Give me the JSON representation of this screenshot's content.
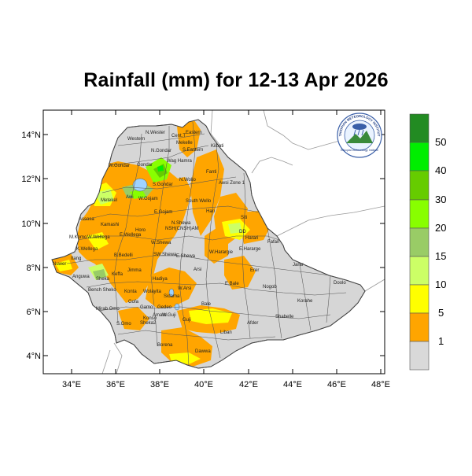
{
  "title": "Rainfall (mm) for 12-13 Apr 2026",
  "colors": {
    "bg_land": "#d6d6d6",
    "c_lt1": "#d9d9d9",
    "c_1_5": "#ffa500",
    "c_5_10": "#ffff00",
    "c_10_15": "#ccff66",
    "c_15_20": "#99cc66",
    "c_20_30": "#88ff00",
    "c_30_40": "#66cc00",
    "c_40_50": "#00ee00",
    "c_gt50": "#228b22"
  },
  "axes": {
    "lat_ticks": [
      "4°N",
      "6°N",
      "8°N",
      "10°N",
      "12°N",
      "14°N"
    ],
    "lon_ticks": [
      "34°E",
      "36°E",
      "38°E",
      "40°E",
      "42°E",
      "44°E",
      "46°E",
      "48°E"
    ]
  },
  "colorbar": {
    "labels": [
      "1",
      "5",
      "10",
      "15",
      "20",
      "30",
      "40",
      "50"
    ]
  },
  "regions": [
    {
      "name": "Western"
    },
    {
      "name": "N.Wester"
    },
    {
      "name": "Cent.T"
    },
    {
      "name": "Eastern"
    },
    {
      "name": "N.Gondar"
    },
    {
      "name": "Mekelle"
    },
    {
      "name": "S.Eastern"
    },
    {
      "name": "Kilbati"
    },
    {
      "name": "W.Gondar"
    },
    {
      "name": "Gondar"
    },
    {
      "name": "Wag Hamra"
    },
    {
      "name": "Fanti"
    },
    {
      "name": "Awsi Zone 1"
    },
    {
      "name": "Metekel"
    },
    {
      "name": "Awi"
    },
    {
      "name": "W.Gojam"
    },
    {
      "name": "S.Gondar"
    },
    {
      "name": "N.Wollo"
    },
    {
      "name": "E.Gojam"
    },
    {
      "name": "South Wello"
    },
    {
      "name": "Hari"
    },
    {
      "name": "Assosa"
    },
    {
      "name": "Kamashi"
    },
    {
      "name": "Horo"
    },
    {
      "name": "N.Shewa"
    },
    {
      "name": "NSH(CNSH)AM"
    },
    {
      "name": "Siti"
    },
    {
      "name": "M.Komo"
    },
    {
      "name": "W.Wellega"
    },
    {
      "name": "E.Wellega"
    },
    {
      "name": "W.Shewa"
    },
    {
      "name": "Harari"
    },
    {
      "name": "Fafan"
    },
    {
      "name": "K.Wellega"
    },
    {
      "name": "DD"
    },
    {
      "name": "W.Harargie"
    },
    {
      "name": "E.Hararge"
    },
    {
      "name": "Nuwer"
    },
    {
      "name": "Itang"
    },
    {
      "name": "B.Bedelli"
    },
    {
      "name": "SW.Shewa"
    },
    {
      "name": "E.Shewa"
    },
    {
      "name": "Jimma"
    },
    {
      "name": "Jarar"
    },
    {
      "name": "Anguwa"
    },
    {
      "name": "Sheka"
    },
    {
      "name": "Arsi"
    },
    {
      "name": "Erer"
    },
    {
      "name": "Bench Sheko"
    },
    {
      "name": "Konta"
    },
    {
      "name": "Hadiya"
    },
    {
      "name": "W.Arsi"
    },
    {
      "name": "Wolayita"
    },
    {
      "name": "Sidama"
    },
    {
      "name": "E.Bale"
    },
    {
      "name": "Nogob"
    },
    {
      "name": "Doolo"
    },
    {
      "name": "Mirab Omo"
    },
    {
      "name": "Gofa"
    },
    {
      "name": "Gamo"
    },
    {
      "name": "Gedeo"
    },
    {
      "name": "Bale"
    },
    {
      "name": "Korahe"
    },
    {
      "name": "S.Omo"
    },
    {
      "name": "Konso"
    },
    {
      "name": "Amaro"
    },
    {
      "name": "W.Guji"
    },
    {
      "name": "Guji"
    },
    {
      "name": "Afder"
    },
    {
      "name": "Shabelle"
    },
    {
      "name": "Liban"
    },
    {
      "name": "Borena"
    },
    {
      "name": "Dawwa"
    },
    {
      "name": "Keffa"
    },
    {
      "name": "Sheka2"
    }
  ],
  "logo": {
    "top_text": "ETHIOPIAN METEOROLOGY INSTITUTE",
    "bottom_text": "Ethiopian Meteorology Institute"
  }
}
